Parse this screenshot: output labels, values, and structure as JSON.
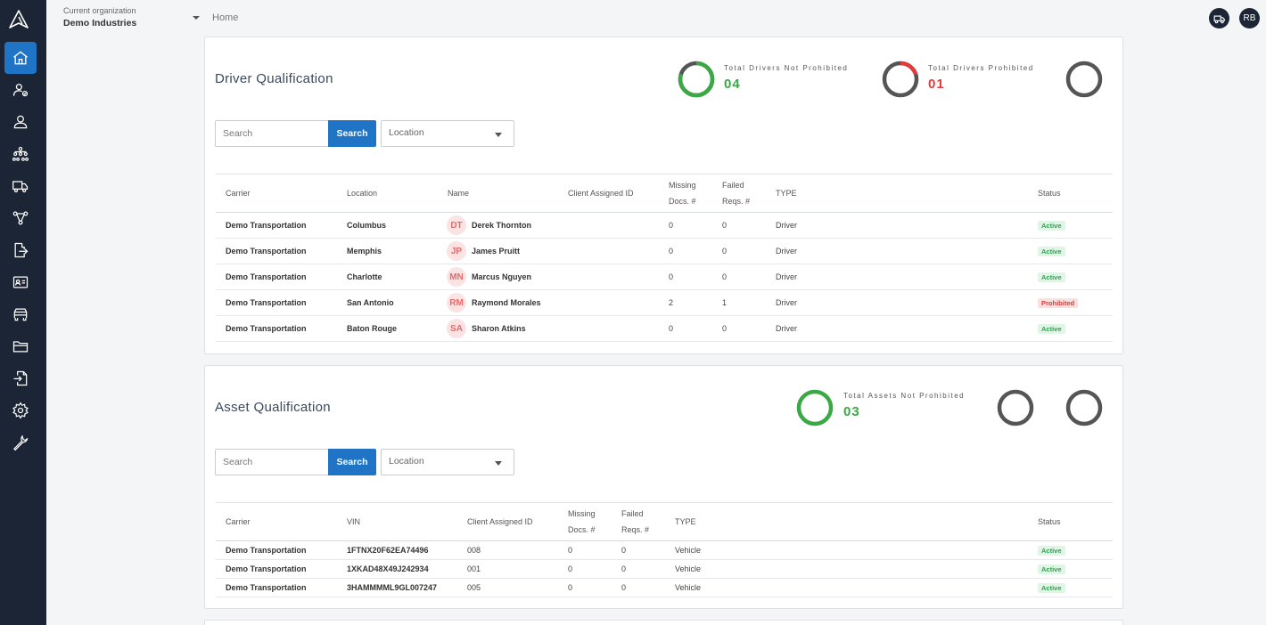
{
  "org": {
    "label": "Current organization",
    "name": "Demo Industries"
  },
  "breadcrumb": "Home",
  "user": {
    "initials": "RB"
  },
  "colors": {
    "sidebar": "#1c2536",
    "accent": "#1f74c5",
    "green": "#3aa845",
    "red": "#e23b3b",
    "grey": "#555555"
  },
  "nav_icons": [
    "home-icon",
    "user-check-icon",
    "user-icon",
    "org-chart-icon",
    "truck-icon",
    "network-icon",
    "file-export-icon",
    "id-card-icon",
    "vehicle-icon",
    "folder-icon",
    "file-import-icon",
    "settings-icon",
    "wrench-icon"
  ],
  "driver": {
    "title": "Driver Qualification",
    "stats": [
      {
        "label": "Total Drivers Not Prohibited",
        "value": "04"
      },
      {
        "label": "Total Drivers Prohibited",
        "value": "01"
      }
    ],
    "search": {
      "placeholder": "Search",
      "button": "Search",
      "location": "Location"
    },
    "columns": {
      "carrier": "Carrier",
      "location": "Location",
      "name": "Name",
      "client_id": "Client Assigned ID",
      "missing_1": "Missing",
      "missing_2": "Docs. #",
      "failed_1": "Failed",
      "failed_2": "Reqs. #",
      "type": "TYPE",
      "status": "Status"
    },
    "rows": [
      {
        "carrier": "Demo Transportation",
        "location": "Columbus",
        "initials": "DT",
        "name": "Derek Thornton",
        "client_id": "",
        "missing": "0",
        "failed": "0",
        "type": "Driver",
        "status": "Active"
      },
      {
        "carrier": "Demo Transportation",
        "location": "Memphis",
        "initials": "JP",
        "name": "James Pruitt",
        "client_id": "",
        "missing": "0",
        "failed": "0",
        "type": "Driver",
        "status": "Active"
      },
      {
        "carrier": "Demo Transportation",
        "location": "Charlotte",
        "initials": "MN",
        "name": "Marcus Nguyen",
        "client_id": "",
        "missing": "0",
        "failed": "0",
        "type": "Driver",
        "status": "Active"
      },
      {
        "carrier": "Demo Transportation",
        "location": "San Antonio",
        "initials": "RM",
        "name": "Raymond Morales",
        "client_id": "",
        "missing": "2",
        "failed": "1",
        "type": "Driver",
        "status": "Prohibited"
      },
      {
        "carrier": "Demo Transportation",
        "location": "Baton Rouge",
        "initials": "SA",
        "name": "Sharon Atkins",
        "client_id": "",
        "missing": "0",
        "failed": "0",
        "type": "Driver",
        "status": "Active"
      }
    ]
  },
  "asset": {
    "title": "Asset Qualification",
    "stats": [
      {
        "label": "Total Assets Not Prohibited",
        "value": "03"
      }
    ],
    "search": {
      "placeholder": "Search",
      "button": "Search",
      "location": "Location"
    },
    "columns": {
      "carrier": "Carrier",
      "vin": "VIN",
      "client_id": "Client Assigned ID",
      "missing_1": "Missing",
      "missing_2": "Docs. #",
      "failed_1": "Failed",
      "failed_2": "Reqs. #",
      "type": "TYPE",
      "status": "Status"
    },
    "rows": [
      {
        "carrier": "Demo Transportation",
        "vin": "1FTNX20F62EA74496",
        "client_id": "008",
        "missing": "0",
        "failed": "0",
        "type": "Vehicle",
        "status": "Active"
      },
      {
        "carrier": "Demo Transportation",
        "vin": "1XKAD48X49J242934",
        "client_id": "001",
        "missing": "0",
        "failed": "0",
        "type": "Vehicle",
        "status": "Active"
      },
      {
        "carrier": "Demo Transportation",
        "vin": "3HAMMMML9GL007247",
        "client_id": "005",
        "missing": "0",
        "failed": "0",
        "type": "Vehicle",
        "status": "Active"
      }
    ]
  }
}
